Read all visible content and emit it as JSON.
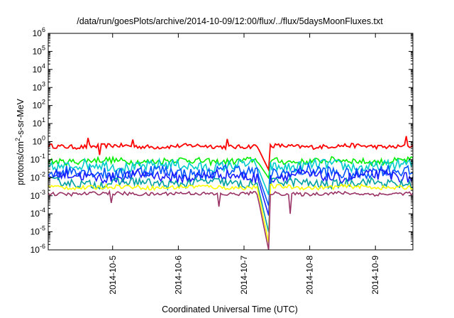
{
  "chart_data": {
    "type": "line",
    "title": "/data/run/goesPlots/archive/2014-10-09/12:00/flux/../flux/5daysMoonFluxes.txt",
    "xlabel": "Coordinated Universal Time (UTC)",
    "ylabel": "protons/cm²-s-sr-MeV",
    "yscale": "log",
    "ylim": [
      1e-06,
      1000000.0
    ],
    "xlim": [
      4.02,
      9.57
    ],
    "x_unit_note": "days of October 2014",
    "xticks": [
      {
        "value": 5,
        "label": "2014-10-5"
      },
      {
        "value": 6,
        "label": "2014-10-6"
      },
      {
        "value": 7,
        "label": "2014-10-7"
      },
      {
        "value": 8,
        "label": "2014-10-8"
      },
      {
        "value": 9,
        "label": "2014-10-9"
      }
    ],
    "yticks": [
      {
        "exp": -6
      },
      {
        "exp": -5
      },
      {
        "exp": -4
      },
      {
        "exp": -3
      },
      {
        "exp": -2
      },
      {
        "exp": -1
      },
      {
        "exp": 0
      },
      {
        "exp": 1
      },
      {
        "exp": 2
      },
      {
        "exp": 3
      },
      {
        "exp": 4
      },
      {
        "exp": 5
      },
      {
        "exp": 6
      }
    ],
    "grid": false,
    "legend": false,
    "series": [
      {
        "color": "#ff0000",
        "base": 0.55,
        "jitter": 0.12,
        "drop_to": 0.025,
        "spikes": [
          [
            4.62,
            1.6
          ],
          [
            4.8,
            0.18
          ],
          [
            5.3,
            1.3
          ],
          [
            6.75,
            1.4
          ],
          [
            9.48,
            2.0
          ]
        ]
      },
      {
        "color": "#00ee00",
        "base": 0.085,
        "jitter": 0.18,
        "drop_to": 0.009,
        "spikes": []
      },
      {
        "color": "#00cccc",
        "base": 0.045,
        "jitter": 0.3,
        "drop_to": 0.001,
        "spikes": []
      },
      {
        "color": "#0055ff",
        "base": 0.02,
        "jitter": 0.35,
        "drop_to": 0.00025,
        "spikes": []
      },
      {
        "color": "#1a1aff",
        "base": 0.012,
        "jitter": 0.3,
        "drop_to": 7e-05,
        "spikes": []
      },
      {
        "color": "#00a0a0",
        "base": 0.005,
        "jitter": 0.25,
        "drop_to": 8e-06,
        "spikes": []
      },
      {
        "color": "#ffff00",
        "base": 0.003,
        "jitter": 0.12,
        "drop_to": 2e-06,
        "spikes": []
      },
      {
        "color": "#993366",
        "base": 0.0013,
        "jitter": 0.1,
        "drop_to": 8e-07,
        "spikes": [
          [
            4.98,
            0.0004
          ],
          [
            6.62,
            0.00025
          ],
          [
            7.7,
            0.0001
          ]
        ]
      }
    ],
    "drop_event": {
      "start": 7.2,
      "end": 7.38
    }
  }
}
